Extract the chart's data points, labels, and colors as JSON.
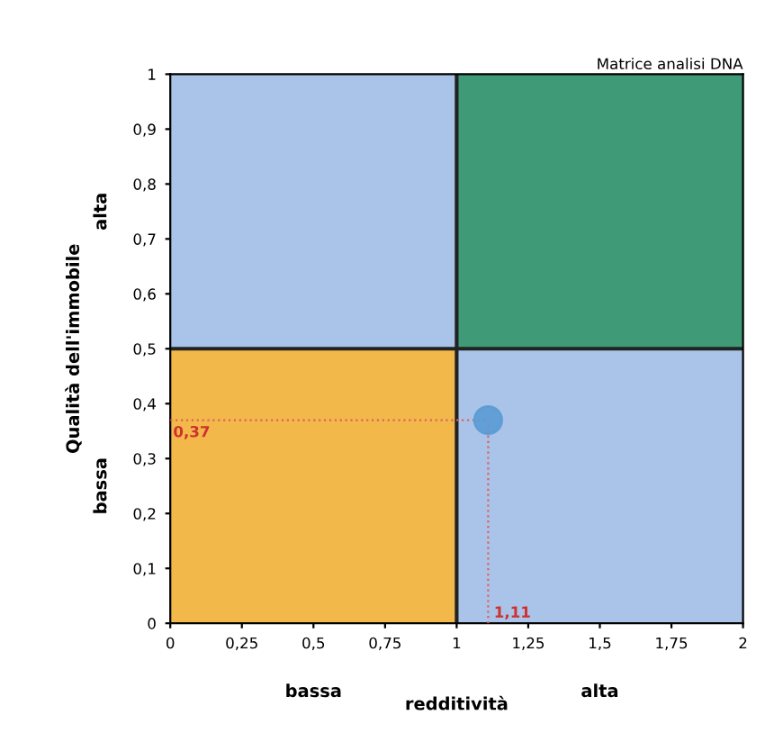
{
  "chart_data": {
    "type": "scatter",
    "title": "Matrice analisi DNA",
    "xlabel": "redditività",
    "ylabel": "Qualità dell'immobile",
    "x": [
      1.11
    ],
    "values": [
      0.37
    ],
    "color": "#5b9bd5",
    "marker": "circle",
    "grid": false,
    "xlim": [
      0,
      2
    ],
    "ylim": [
      0,
      1
    ],
    "xticks": [
      0,
      {
        "value": 0.25,
        "label": "0,25"
      },
      {
        "value": 0.5,
        "label": "0,5"
      },
      {
        "value": 0.75,
        "label": "0,75"
      },
      1,
      {
        "value": 1.25,
        "label": "1,25"
      },
      {
        "value": 1.5,
        "label": "1,5"
      },
      {
        "value": 1.75,
        "label": "1,75"
      },
      2
    ],
    "yticks": [
      0,
      {
        "value": 0.1,
        "label": "0,1"
      },
      {
        "value": 0.2,
        "label": "0,2"
      },
      {
        "value": 0.3,
        "label": "0,3"
      },
      {
        "value": 0.4,
        "label": "0,4"
      },
      {
        "value": 0.5,
        "label": "0,5"
      },
      {
        "value": 0.6,
        "label": "0,6"
      },
      {
        "value": 0.7,
        "label": "0,7"
      },
      {
        "value": 0.8,
        "label": "0,8"
      },
      {
        "value": 0.9,
        "label": "0,9"
      },
      1
    ],
    "ref_lines": [
      {
        "axis": "x",
        "value": 1,
        "color": "#222222"
      },
      {
        "axis": "y",
        "value": 0.5,
        "color": "#222222"
      }
    ],
    "annotations": [
      {
        "text": "0,37",
        "x": 1.11,
        "y": 0.37
      },
      {
        "text": "1,11",
        "x": 1.11,
        "y": 0.37
      },
      "bassa",
      "alta",
      "bassa",
      "alta"
    ]
  }
}
